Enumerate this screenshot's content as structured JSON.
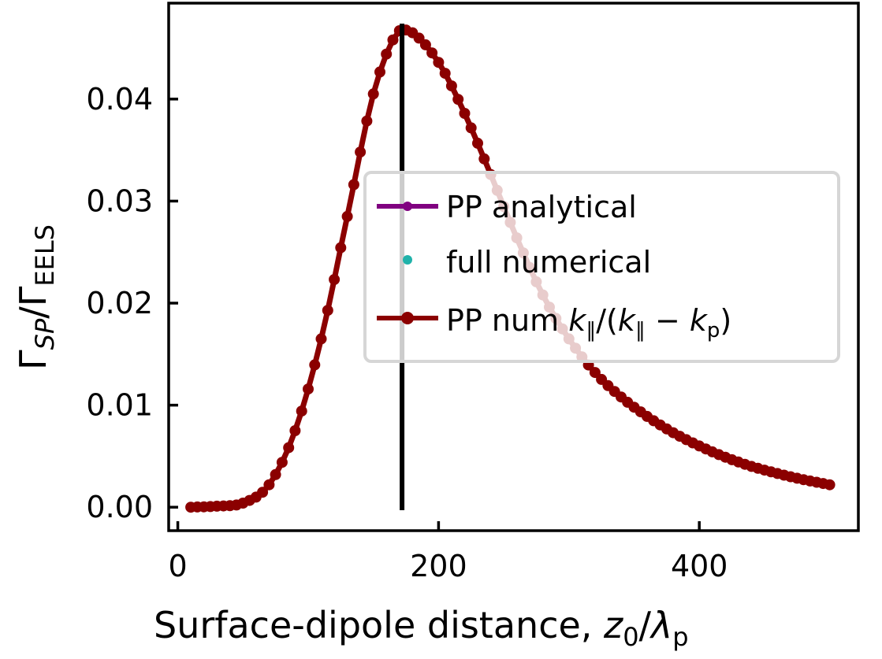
{
  "chart_data": {
    "type": "line",
    "xlabel": {
      "main": "Surface-dipole distance, ",
      "var": "z",
      "sub0": "0",
      "slash": "/",
      "lambda": "λ",
      "subp": "p"
    },
    "ylabel": {
      "gamma1": "Γ",
      "sub1": "SP",
      "slash": "/",
      "gamma2": "Γ",
      "sub2": "EELS"
    },
    "xlim": [
      -7,
      522
    ],
    "ylim": [
      -0.0023,
      0.0494
    ],
    "x_ticks": [
      0,
      200,
      400
    ],
    "x_tick_labels": [
      "0",
      "200",
      "400"
    ],
    "y_ticks": [
      0.0,
      0.01,
      0.02,
      0.03,
      0.04
    ],
    "y_tick_labels": [
      "0.00",
      "0.01",
      "0.02",
      "0.03",
      "0.04"
    ],
    "vertical_line_x": 172,
    "series": [
      {
        "name": "PP analytical",
        "color": "#800080",
        "style": "line-with-markers",
        "x": [
          10,
          30,
          50,
          70,
          90,
          110,
          130,
          150,
          165,
          172,
          180,
          200,
          220,
          240,
          260,
          280,
          300,
          320,
          340,
          360,
          380,
          400,
          420,
          440,
          460,
          480,
          500
        ],
        "y": [
          0.0,
          0.0001,
          0.0004,
          0.0022,
          0.0075,
          0.0165,
          0.0285,
          0.0405,
          0.0458,
          0.0468,
          0.0465,
          0.0436,
          0.0386,
          0.0326,
          0.0264,
          0.0208,
          0.0165,
          0.0132,
          0.0108,
          0.0089,
          0.0073,
          0.006,
          0.0049,
          0.004,
          0.0033,
          0.0027,
          0.0022
        ]
      },
      {
        "name": "full numerical",
        "color": "#20b2aa",
        "style": "markers",
        "x": [],
        "y": []
      },
      {
        "name": "PP num",
        "legend_math": {
          "k1": "k",
          "par1": "∥",
          "open": "/(",
          "k2": "k",
          "par2": "∥",
          "minus": " − ",
          "k3": "k",
          "sub": "p",
          "close": ")"
        },
        "color": "#8b0000",
        "style": "line-with-markers",
        "x": [
          10,
          30,
          50,
          70,
          90,
          110,
          130,
          150,
          165,
          172,
          180,
          200,
          220,
          240,
          260,
          280,
          300,
          320,
          340,
          360,
          380,
          400,
          420,
          440,
          460,
          480,
          500
        ],
        "y": [
          0.0,
          0.0001,
          0.0004,
          0.0022,
          0.0075,
          0.0165,
          0.0285,
          0.0405,
          0.0458,
          0.0468,
          0.0465,
          0.0436,
          0.0386,
          0.0326,
          0.0264,
          0.0208,
          0.0165,
          0.0132,
          0.0108,
          0.0089,
          0.0073,
          0.006,
          0.0049,
          0.004,
          0.0033,
          0.0027,
          0.0022
        ]
      }
    ],
    "legend_placement": "center-right",
    "grid": false
  }
}
